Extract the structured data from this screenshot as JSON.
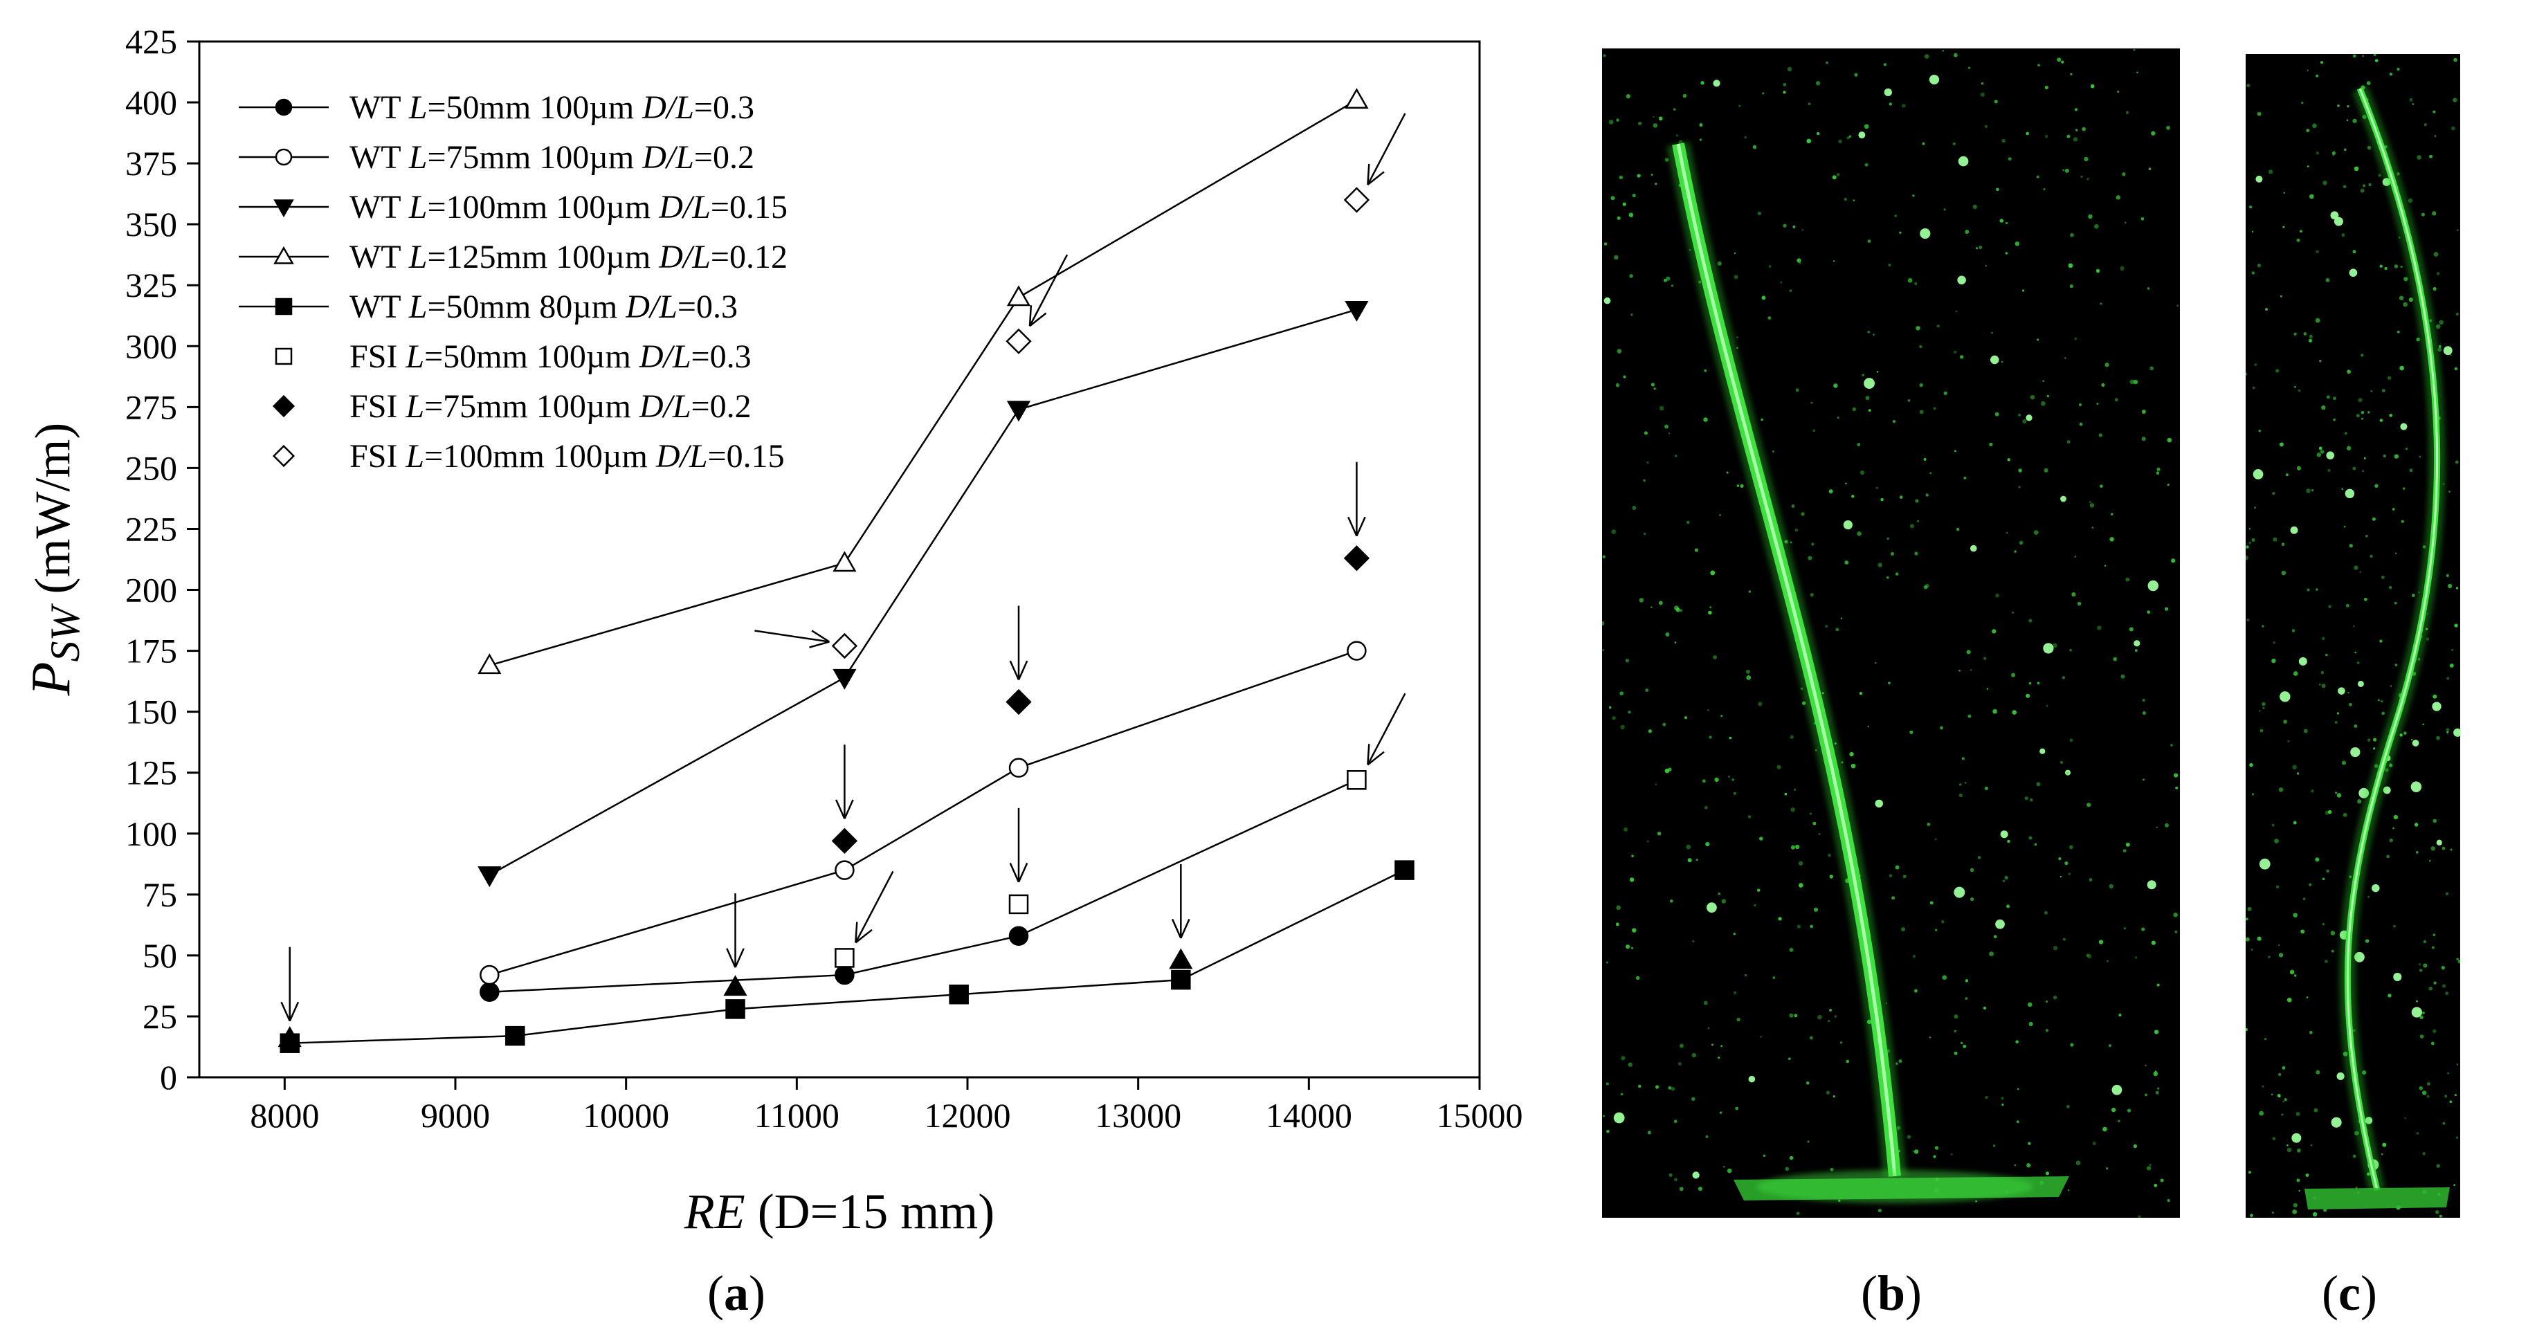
{
  "chart_data": {
    "type": "line",
    "xlim": [
      7500,
      15000
    ],
    "ylim": [
      0,
      425
    ],
    "x_ticks": [
      8000,
      9000,
      10000,
      11000,
      12000,
      13000,
      14000,
      15000
    ],
    "x_tick_labels": [
      "8000",
      "9000",
      "10000",
      "11000",
      "12000",
      "13000",
      "14000",
      "15000"
    ],
    "y_ticks": [
      0,
      25,
      50,
      75,
      100,
      125,
      150,
      175,
      200,
      225,
      250,
      275,
      300,
      325,
      350,
      375,
      400,
      425
    ],
    "y_tick_labels": [
      "0",
      "25",
      "50",
      "75",
      "100",
      "125",
      "150",
      "175",
      "200",
      "225",
      "250",
      "275",
      "300",
      "325",
      "350",
      "375",
      "400",
      "425"
    ],
    "xlabel": {
      "main": "RE",
      "rest": " (D=15 mm)"
    },
    "ylabel": {
      "main": "P",
      "sub": "SW",
      "unit": " (mW/m)"
    },
    "grid": false,
    "legend_position": "top-left",
    "series": [
      {
        "name": "WT L=50mm 100µm  D/L=0.3",
        "legend": [
          "WT ",
          "L",
          "=50mm 100µm  ",
          "D/L",
          "=0.3"
        ],
        "marker": "circle-filled",
        "line": true,
        "x": [
          9200,
          11280,
          12300,
          14280
        ],
        "y": [
          35,
          42,
          58,
          122
        ]
      },
      {
        "name": "WT L=75mm 100µm  D/L=0.2",
        "legend": [
          "WT ",
          "L",
          "=75mm 100µm  ",
          "D/L",
          "=0.2"
        ],
        "marker": "circle-open",
        "line": true,
        "x": [
          9200,
          11280,
          12300,
          14280
        ],
        "y": [
          42,
          85,
          127,
          175
        ]
      },
      {
        "name": "WT L=100mm 100µm  D/L=0.15",
        "legend": [
          "WT ",
          "L",
          "=100mm 100µm  ",
          "D/L",
          "=0.15"
        ],
        "marker": "triangle-down-filled",
        "line": true,
        "x": [
          9200,
          11280,
          12300,
          14280
        ],
        "y": [
          83,
          164,
          274,
          315
        ]
      },
      {
        "name": "WT L=125mm 100µm  D/L=0.12",
        "legend": [
          "WT ",
          "L",
          "=125mm 100µm  ",
          "D/L",
          "=0.12"
        ],
        "marker": "triangle-up-open",
        "line": true,
        "x": [
          9200,
          11280,
          12300,
          14280
        ],
        "y": [
          169,
          211,
          320,
          401
        ]
      },
      {
        "name": "WT L=50mm 80µm  D/L=0.3",
        "legend": [
          "WT ",
          "L",
          "=50mm 80µm  ",
          "D/L",
          "=0.3"
        ],
        "marker": "square-filled",
        "line": true,
        "x": [
          8030,
          9350,
          10640,
          11950,
          13250,
          14560
        ],
        "y": [
          14,
          17,
          28,
          34,
          40,
          85
        ]
      },
      {
        "name": "FSI L=50mm 100µm  D/L=0.3",
        "legend": [
          "FSI ",
          "L",
          "=50mm 100µm  ",
          "D/L",
          "=0.3"
        ],
        "marker": "square-open",
        "line": false,
        "x": [
          11280,
          12300,
          14280
        ],
        "y": [
          49,
          71,
          122
        ]
      },
      {
        "name": "FSI L=75mm 100µm  D/L=0.2",
        "legend": [
          "FSI ",
          "L",
          "=75mm 100µm  ",
          "D/L",
          "=0.2"
        ],
        "marker": "diamond-filled",
        "line": false,
        "x": [
          11280,
          12300,
          14280
        ],
        "y": [
          97,
          154,
          213
        ]
      },
      {
        "name": "FSI L=100mm 100µm  D/L=0.15",
        "legend": [
          "FSI ",
          "L",
          "=100mm 100µm  ",
          "D/L",
          "=0.15"
        ],
        "marker": "diamond-open",
        "line": false,
        "x": [
          11280,
          12300,
          14280
        ],
        "y": [
          177,
          302,
          360
        ]
      }
    ],
    "unlabeled_points": {
      "marker": "triangle-up-filled",
      "x": [
        8030,
        10640,
        13250
      ],
      "y": [
        16,
        37,
        48
      ]
    },
    "arrows": [
      {
        "type": "down",
        "x": 8030,
        "y": 18
      },
      {
        "type": "down",
        "x": 10640,
        "y": 40
      },
      {
        "type": "down",
        "x": 13250,
        "y": 52
      },
      {
        "type": "down",
        "x": 11280,
        "y": 101
      },
      {
        "type": "down",
        "x": 12300,
        "y": 75
      },
      {
        "type": "down",
        "x": 12300,
        "y": 158
      },
      {
        "type": "down",
        "x": 14280,
        "y": 217
      },
      {
        "type": "diag",
        "x": 11280,
        "y": 49
      },
      {
        "type": "diag",
        "x": 12300,
        "y": 302
      },
      {
        "type": "diag",
        "x": 14280,
        "y": 122
      },
      {
        "type": "diag",
        "x": 14280,
        "y": 360
      },
      {
        "type": "right",
        "x": 11280,
        "y": 177
      }
    ]
  },
  "panels": {
    "a_label": "(a)",
    "b_label": "(b)",
    "c_label": "(c)",
    "photo_color": "#000000",
    "filament_color": "#2fd42f",
    "particle_color": "#4cff4c"
  }
}
